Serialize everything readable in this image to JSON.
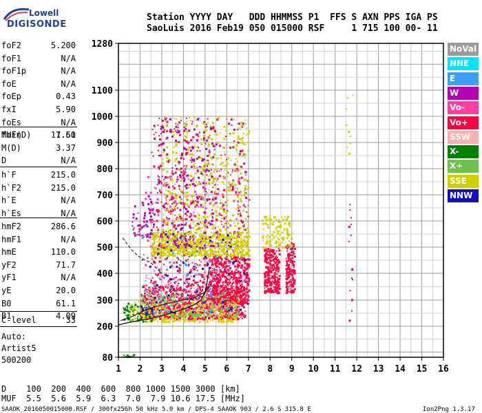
{
  "logo": {
    "line1": "Lowell",
    "line2": "DIGISONDE",
    "accent": "#1e3f9c"
  },
  "header": {
    "labels": "Station YYYY DAY   DDD HHMMSS P1  FFS S AXN PPS IGA PS",
    "values": "SaoLuis 2016 Feb19 050 015000 RSF     1 715 100 00- 11"
  },
  "params_block1": [
    {
      "name": "foF2",
      "value": "5.200"
    },
    {
      "name": "foF1",
      "value": "N/A"
    },
    {
      "name": "foF1p",
      "value": "N/A"
    },
    {
      "name": "foE",
      "value": "N/A"
    },
    {
      "name": "foEp",
      "value": "0.43"
    },
    {
      "name": "fxI",
      "value": "5.90"
    },
    {
      "name": "foEs",
      "value": "N/A"
    },
    {
      "name": "fmin",
      "value": "1.60"
    }
  ],
  "params_block2": [
    {
      "name": "MUF(D)",
      "value": "17.51"
    },
    {
      "name": "M(D)",
      "value": "3.37"
    },
    {
      "name": "D",
      "value": "N/A"
    }
  ],
  "params_block3": [
    {
      "name": "h`F",
      "value": "215.0"
    },
    {
      "name": "h`F2",
      "value": "215.0"
    },
    {
      "name": "h`E",
      "value": "N/A"
    },
    {
      "name": "h`Es",
      "value": "N/A"
    }
  ],
  "params_block4": [
    {
      "name": "hmF2",
      "value": "286.6"
    },
    {
      "name": "hmF1",
      "value": "N/A"
    },
    {
      "name": "hmE",
      "value": "110.0"
    },
    {
      "name": "yF2",
      "value": "71.7"
    },
    {
      "name": "yF1",
      "value": "N/A"
    },
    {
      "name": "yE",
      "value": "20.0"
    },
    {
      "name": "B0",
      "value": "61.1"
    },
    {
      "name": "B1",
      "value": "4.09"
    }
  ],
  "params_block5": [
    {
      "name": "C-level",
      "value": "33"
    }
  ],
  "notes": [
    "Auto:",
    "Artist5",
    "500200"
  ],
  "legend": [
    {
      "label": "NoVal",
      "color": "#a0a0a0"
    },
    {
      "label": "NNE",
      "color": "#00e5ff"
    },
    {
      "label": "E",
      "color": "#3aa0ff"
    },
    {
      "label": "W",
      "color": "#b400b4"
    },
    {
      "label": "Vo-",
      "color": "#ff3ea0"
    },
    {
      "label": "Vo+",
      "color": "#ff0040"
    },
    {
      "label": "SSW",
      "color": "#ffb0b0"
    },
    {
      "label": "X-",
      "color": "#008000"
    },
    {
      "label": "X+",
      "color": "#70c050"
    },
    {
      "label": "SSE",
      "color": "#d0d000"
    },
    {
      "label": "NNW",
      "color": "#1010c0"
    }
  ],
  "muf_table": {
    "d_row": "D    100  200  400  600  800 1000 1500 3000 [km]",
    "muf_row": "MUF  5.5  5.6  5.9  6.3  7.0  7.9 10.6 17.5 [MHz]"
  },
  "footer": {
    "left": "SAAOK_2016050015000.RSF / 300fx256h 50 kHz 5.0 km / DPS-4 SAAOK 903 / 2.6 S 315.8 E",
    "right": "Ion2Png 1.3.17"
  },
  "chart_data": {
    "type": "scatter",
    "xlim": [
      1,
      16
    ],
    "x_ticks": [
      "1",
      "2",
      "3",
      "4",
      "5",
      "6",
      "7",
      "8",
      "9",
      "10",
      "11",
      "12",
      "13",
      "14",
      "15",
      "16"
    ],
    "y_ticks": [
      "80",
      "200",
      "300",
      "400",
      "500",
      "600",
      "700",
      "800",
      "900",
      "1000",
      "1100",
      "1280"
    ],
    "grid": true,
    "profile_curve": {
      "x": [
        1.0,
        1.5,
        2.0,
        2.5,
        3.0,
        3.5,
        4.0,
        4.5,
        4.8,
        5.0,
        5.1,
        5.2
      ],
      "y": [
        205,
        215,
        222,
        230,
        240,
        252,
        265,
        282,
        300,
        330,
        370,
        420
      ]
    },
    "trace_curve": {
      "x": [
        1.1,
        1.5,
        2.0,
        2.5,
        3.0,
        3.5,
        4.0,
        4.5,
        5.0,
        5.3
      ],
      "y": [
        222,
        232,
        252,
        270,
        282,
        292,
        300,
        310,
        330,
        360
      ]
    },
    "ox_mark_curve": {
      "x": [
        1.2,
        1.6,
        2.0,
        2.5,
        3.0
      ],
      "y": [
        535,
        490,
        460,
        440,
        400
      ]
    },
    "clusters": [
      {
        "name": "Vo+",
        "color": "#ff0040",
        "x": [
          2.0,
          6.8
        ],
        "y": [
          230,
          360
        ],
        "n": 900
      },
      {
        "name": "Vo+",
        "color": "#ff0040",
        "x": [
          5.2,
          7.0
        ],
        "y": [
          290,
          470
        ],
        "n": 500
      },
      {
        "name": "Vo+",
        "color": "#ff0040",
        "x": [
          7.7,
          8.4
        ],
        "y": [
          330,
          500
        ],
        "n": 260
      },
      {
        "name": "Vo+",
        "color": "#ff0040",
        "x": [
          8.7,
          9.1
        ],
        "y": [
          330,
          520
        ],
        "n": 160
      },
      {
        "name": "Vo+",
        "color": "#ff0040",
        "x": [
          2.5,
          6.9
        ],
        "y": [
          360,
          1000
        ],
        "n": 520
      },
      {
        "name": "Vo-",
        "color": "#ff3ea0",
        "x": [
          2.2,
          7.0
        ],
        "y": [
          260,
          800
        ],
        "n": 300
      },
      {
        "name": "SSE",
        "color": "#d0d000",
        "x": [
          2.5,
          7.0
        ],
        "y": [
          470,
          560
        ],
        "n": 700
      },
      {
        "name": "SSE",
        "color": "#d0d000",
        "x": [
          1.5,
          6.5
        ],
        "y": [
          220,
          300
        ],
        "n": 350
      },
      {
        "name": "SSE",
        "color": "#d0d000",
        "x": [
          3.0,
          7.0
        ],
        "y": [
          560,
          1000
        ],
        "n": 420
      },
      {
        "name": "SSE",
        "color": "#d0d000",
        "x": [
          7.6,
          9.0
        ],
        "y": [
          500,
          620
        ],
        "n": 120
      },
      {
        "name": "W",
        "color": "#b400b4",
        "x": [
          2.8,
          5.5
        ],
        "y": [
          500,
          1000
        ],
        "n": 200
      },
      {
        "name": "W",
        "color": "#b400b4",
        "x": [
          1.6,
          2.6
        ],
        "y": [
          540,
          700
        ],
        "n": 60
      },
      {
        "name": "X+",
        "color": "#70c050",
        "x": [
          2.0,
          6.5
        ],
        "y": [
          240,
          330
        ],
        "n": 180
      },
      {
        "name": "X-",
        "color": "#008000",
        "x": [
          1.2,
          2.5
        ],
        "y": [
          220,
          290
        ],
        "n": 60
      },
      {
        "name": "NNW",
        "color": "#1010c0",
        "x": [
          2.0,
          7.0
        ],
        "y": [
          250,
          560
        ],
        "n": 120
      },
      {
        "name": "E",
        "color": "#3aa0ff",
        "x": [
          2.0,
          6.0
        ],
        "y": [
          250,
          560
        ],
        "n": 60
      },
      {
        "name": "SSW",
        "color": "#ffb0b0",
        "x": [
          2.0,
          7.0
        ],
        "y": [
          250,
          450
        ],
        "n": 120
      },
      {
        "name": "Vo+",
        "color": "#ff0040",
        "x": [
          11.6,
          11.8
        ],
        "y": [
          200,
          800
        ],
        "n": 14
      },
      {
        "name": "SSE",
        "color": "#d0d000",
        "x": [
          11.4,
          11.8
        ],
        "y": [
          860,
          1100
        ],
        "n": 10
      },
      {
        "name": "X-",
        "color": "#008000",
        "x": [
          1.15,
          1.7
        ],
        "y": [
          82,
          92
        ],
        "n": 12
      }
    ]
  }
}
